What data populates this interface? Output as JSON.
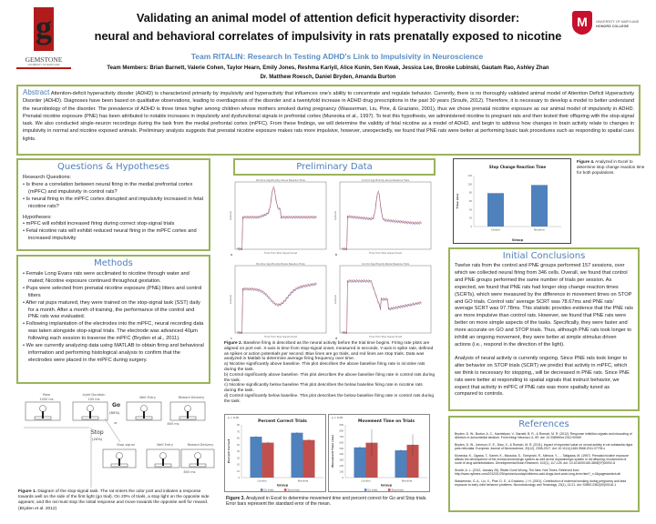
{
  "header": {
    "title_line1": "Validating an animal model of attention deficit hyperactivity disorder:",
    "title_line2": "neural and behavioral correlates of impulsivity in rats prenatally exposed to nicotine",
    "subtitle": "Team RITALIN: Research In Testing ADHD's Link to Impulsivity in Neuroscience",
    "team_members": "Team Members: Brian Barnett, Valerie Cohen, Taylor Hearn, Emily Jones, Reshma Kariyil, Alice Kunin, Sen Kwak, Jessica Lee, Brooke Lubinski, Gautam Rao, Ashley Zhan",
    "advisors": "Dr. Matthew Roesch, Daniel Bryden, Amanda Burton",
    "left_logo_text": "GEMSTONE",
    "left_logo_sub": "UNIVERSITY OF MARYLAND",
    "right_logo_text": "UNIVERSITY OF MARYLAND",
    "right_logo_sub": "HONORS COLLEGE"
  },
  "abstract": {
    "heading": "Abstract",
    "text": "Attention-deficit hyperactivity disoder (ADHD) is characterized primarily by impulsivity and hyperactivity that influences one's ability to concentrate and regulate behavior. Currently, there is no thoroughly validated animal model of Attention Deficit Hyperactivity Disorder (ADHD). Diagnoses have been based on qualitative observations, leading to overdiagnosis of the disorder and a twentyfold increase in ADHD drug prescriptions in the past 30 years (Sroufe, 2012). Therefore, it is necessary to develop a model to better understand the neurobiology of the disorder. The prevalence of ADHD is three times higher among children whose mothers smoked during pregnancy (Wasserman, Liu, Pine, & Graziano, 2001), thus we chose prenatal nicotine exposure as our animal model of impulsivity in ADHD.  Prenatal nicotine exposure (PNE) has been attributed to notable increases in impulsivity and dysfunctional signals in prefrontal cortex (Muneoka et al., 1997). To test this hypothesis, we administered nicotine to pregnant rats and then tested their offspring with the stop-signal task. We also conducted single-neuron recordings during the task from the medial prefrontal cortex (mPFC).  From these findings, we will determine the validity of fetal nicotine as a model of ADHD, and begin to address how changes in brain activity relate to changes in impulsivity in normal and nicotine exposed animals. Preliminary analysis suggests that prenatal nicotine exposure makes rats more impulsive, however, unexpectedly, we found that PNE rats were better at performing basic task procedures such as responding to spatial cues lights."
  },
  "questions": {
    "heading": "Questions & Hypotheses",
    "rq_label": "Research Questions:",
    "rq": [
      "Is there a correlation between neural firing in the medial prefrontal cortex (mPFC) and impulsivity in control rats?",
      "Is neural firing in the mPFC cortex disrupted and impulsivity increased in fetal nicotine rats?"
    ],
    "hyp_label": "Hypotheses:",
    "hyp": [
      "mPFC will exhibit increased firing during correct stop-signal trials",
      "Fetal nicotine rats will exhibit reduced neural firing in the mPFC cortex and increased impulsivity"
    ]
  },
  "methods": {
    "heading": "Methods",
    "items": [
      "Female Long Evans rats were acclimated to nicotine through water and mated; Nicotine exposure continued throughout gestation.",
      "Pups were selected from prenatal nicotine exposure (PNE) litters and control litters",
      "After rat pups matured, they were trained on the stop-signal task (SST) daily for a month. After a month of training, the performance of the control and PNE rats was evaluated.",
      "Following implantation of the electrodes into the mPFC, neural recording data was taken alongside stop-signal trials. The electrode was advanced 40µm following each session to traverse the mPFC (Bryden et al., 2011).",
      "We are currently analyzing data using MATLAB to obtain firing and behavioral information and performing histological analysis to confirm that the electrodes were placed in the mPFC during surgery."
    ]
  },
  "figure1": {
    "labels": {
      "poke": "Poke",
      "poke_ms": "1000 ms",
      "light": "Light Duration",
      "light_ms": "100 ms",
      "well1": "Well Entry",
      "reward1": "Reward Delivery",
      "go": "Go",
      "go_pct": "(80%)",
      "or": "or",
      "ms800a": "800 ms",
      "stop": "Stop",
      "stop_pct": "(20%)",
      "stopsig": "Stop signal",
      "well2": "Well Entry",
      "reward2": "Reward Delivery",
      "ms800b": "800 ms"
    },
    "caption_bold": "Figure 1.",
    "caption": " Diagram of the stop-signal task. The rat enters the odor port and initiates a response towards well on the side of the first light (go trial). On 20% of trials, a stop light on the opposite side appears; and the rat must stop the initial response and move towards the opposite well for reward. (Bryden et al. 2012)"
  },
  "preliminary": {
    "heading": "Preliminary Data",
    "panels": [
      {
        "letter": "a",
        "title": "Nicotine Significantly Above Baseline Trials",
        "xlabel": "Time from Stop Signal Onset",
        "ylabel": "spikes/s"
      },
      {
        "letter": "b",
        "title": "Control Significantly Above Baseline Trials",
        "xlabel": "Time from Stop Signal Onset",
        "ylabel": "spikes/s"
      },
      {
        "letter": "c",
        "title": "Nicotine Significantly Below Baseline Trials",
        "xlabel": "Time from Stop Signal Onset",
        "ylabel": "spikes/s"
      },
      {
        "letter": "d",
        "title": "Control Significantly Below Baseline Trials",
        "xlabel": "Time from Stop Signal Onset",
        "ylabel": "spikes/s"
      }
    ],
    "series_colors": {
      "go": "#3b4fa0",
      "stop": "#c0393b"
    },
    "fig2_bold": "Figure 2.",
    "fig2_lines": [
      " Baseline firing is described as the neural activity before the trial time begins. Firing rate plots are aligned on port exit. X-axis is time from stop-signal onset, measured in seconds. Y-axis is spike rate, defined as spikes or action potentials per second. Blue lines are go trials, and red lines are stop trials. Data was analyzed in Matlab to determine average firing frequency over time.",
      "a) Nicotine significantly above baseline. This plot describes the above baseline firing rate in nicotine rats during the task.",
      "b) Control significantly above baseline. This plot describes the above baseline firing rate in control rats during the task.",
      "c) Nicotine significantly below baseline This plot describes the below baseline firing rate in nicotine rats during the task.",
      "d) Control significantly below baseline. This plot describes the below baseline firing rate in control rats during the task."
    ],
    "fig3_bold": "Figure 3.",
    "fig3_caption": " Analyzed in Excel to determine movement time and percent correct for Go and Stop trials. Error bars represent the standard error of the mean.",
    "fig4_bold": "Figure 4.",
    "fig4_caption": " Analyzed in Excel to determine stop change reaction time for both populations."
  },
  "chart_data": [
    {
      "type": "bar",
      "title": "Stop Change Reaction Time",
      "xlabel": "Group",
      "ylabel": "Time (ms)",
      "categories": [
        "Control",
        "Nicotine"
      ],
      "values": [
        78.67,
        97.78
      ],
      "ylim": [
        0,
        120
      ],
      "yticks": [
        0,
        20,
        40,
        60,
        80,
        100,
        120
      ],
      "colors": [
        "#4f81bd"
      ],
      "grid": false
    },
    {
      "type": "bar",
      "title": "Percent Correct Trials",
      "annotation": "p < 0.05",
      "xlabel": "Group",
      "ylabel": "Percent Correct",
      "categories": [
        "Control",
        "Nicotine"
      ],
      "series": [
        {
          "name": "Go trials",
          "values": [
            62,
            68
          ],
          "err": [
            1.5,
            1.2
          ]
        },
        {
          "name": "Stop trials",
          "values": [
            53,
            57
          ],
          "err": [
            1.5,
            1.5
          ]
        }
      ],
      "ylim": [
        0,
        80
      ],
      "yticks": [
        0,
        10,
        20,
        30,
        40,
        50,
        60,
        70,
        80
      ],
      "colors": [
        "#4f81bd",
        "#c0504d"
      ],
      "legend": "bottom"
    },
    {
      "type": "bar",
      "title": "Movement Time on Trials",
      "annotation": "p < 0.05",
      "xlabel": "Group",
      "ylabel": "Movement Time (ms)",
      "categories": [
        "Control",
        "Nicotine"
      ],
      "series": [
        {
          "name": "Go trials",
          "values": [
            515,
            465
          ],
          "err": [
            20,
            15
          ]
        },
        {
          "name": "Stop trials",
          "values": [
            595,
            560
          ],
          "err": [
            230,
            180
          ]
        }
      ],
      "ylim": [
        0,
        900
      ],
      "yticks": [
        0,
        100,
        200,
        300,
        400,
        500,
        600,
        700,
        800,
        900
      ],
      "colors": [
        "#4f81bd",
        "#c0504d"
      ],
      "legend": "bottom"
    }
  ],
  "conclusions": {
    "heading": "Initial Conclusions",
    "p1": "Twelve rats from the control and PNE groups performed 157 sessions, over which we collected neural firing from 346 cells.  Overall, we found that control and PNE groups performed the same number of trials per session. As expected, we found that PNE rats had longer stop change reaction times (SCRTs), which were measured by the difference in movement times on STOP and GO trials. Control rats' average SCRT was 78.67ms and PNE rats' average SCRT was 97.78ms. This statistic provides evidence that the PNE rats are more impulsive than control rats. However, we found that PNE rats were better on more simple aspects of the tasks.  Specifically, they were faster and more accurate on GO and STOP trials. Thus, although PNE rats took longer to inhibit an ongoing movement, they were better at simple stimulus driven actions (i.e., respond in the direction of the light).",
    "p2": "Analysis of neural activity is currently ongoing. Since PNE rats took longer to alter behavior on STOP trials (SCRT) we predict that activity in mPFC, which we think is necessary for stopping,, will be decreased in PNE rats. Since PNE rats were better at responding to spatial signals that instruct behavior, we expect that activity in mPFC of PNE rats was more spatially tuned as compared to controls."
  },
  "references": {
    "heading": "References",
    "items": [
      "Bryden, D. W., Burton, A. C., Kashtelyan, V., Barnett, B. R., & Roesch, M. R. (2012). Response inhibition signals and miscoding of direction in dorsomedial striatum. Front Integr Neurosci, 6, 69. doi: 10.3389/fnint.2012.00069",
      "Bryden, D. W., Johnson, E. E., Diao, X., & Roesch, M. R. (2011). Impact of expected value on neural activity in rat substantia nigra pars reticulata. European Journal of Neuroscience, 33(12), 2308-2317. doi: 10.1111/j.1460-9568.2011.07705.x",
      "Muneoka, K., Ogawa, T., Kamei, K., Muraoka, S., Tomiyoshi, R., Mimura, Y., ... Takigawa, M. (1997). Prenatal nicotine exposure affects the development of the central serotonergic system as well as the dopaminergic system in rat offspring: involvement of route of drug administrations. Developmental Brain Research, 102(1), 117-126. doi: 10.1016/S0165-3806(97)00092-8",
      "Sroufe, A. L. (2012, January 28). Ritalin Gone Wrong. The New York Times. Retrieved from http://www.nytimes.com/2012/01/29/opinion/sunday/childrens-add-drugs-dont-work-long-term.html?_r=0&pagewanted=all",
      "Wasserman, G. A., Liu, X., Pine, D. S., & Graziano, J. H. (2001). Contribution of maternal smoking during pregnancy and lead exposure to early child behavior problems. Neurotoxicology and Teratology, 23(1), 13-21. doi: S0892-0362(00)00116-1"
    ]
  }
}
